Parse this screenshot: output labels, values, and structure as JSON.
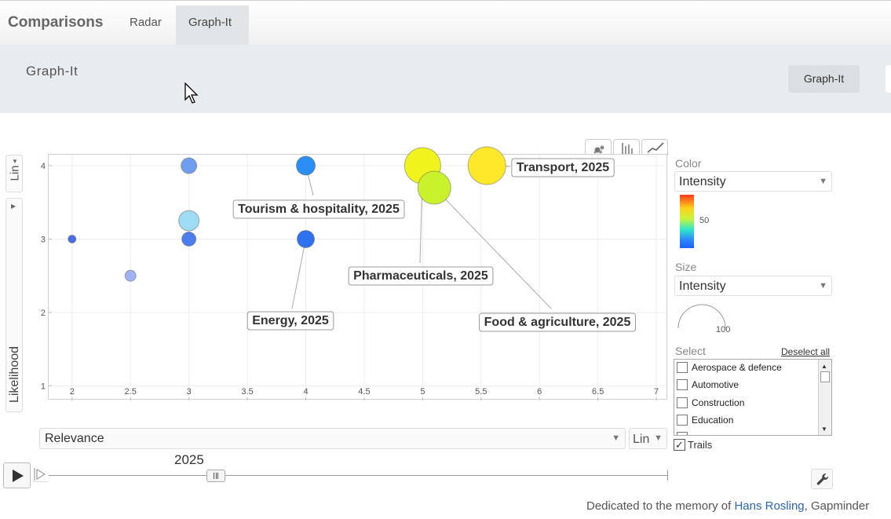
{
  "app": {
    "brand": "Comparisons",
    "tabs": [
      {
        "label": "Radar",
        "active": false
      },
      {
        "label": "Graph-It",
        "active": true
      }
    ]
  },
  "subheader": {
    "title": "Graph-It",
    "button_label": "Graph-It"
  },
  "chart_controls": {
    "modes": [
      {
        "icon": "bubble-chart-icon",
        "active": true
      },
      {
        "icon": "bar-chart-icon",
        "active": false
      },
      {
        "icon": "line-chart-icon",
        "active": false
      }
    ],
    "y_scale": "Lin",
    "y_indicator": "Likelihood",
    "x_indicator": "Relevance",
    "x_scale": "Lin"
  },
  "timeline": {
    "year": "2025",
    "progress": 0.27
  },
  "right_panel": {
    "color_label": "Color",
    "color_indicator": "Intensity",
    "color_legend_tick": "50",
    "size_label": "Size",
    "size_indicator": "Intensity",
    "size_legend_tick": "100",
    "select_label": "Select",
    "deselect_label": "Deselect all",
    "select_items": [
      {
        "label": "Aerospace & defence",
        "checked": false
      },
      {
        "label": "Automotive",
        "checked": false
      },
      {
        "label": "Construction",
        "checked": false
      },
      {
        "label": "Education",
        "checked": false
      }
    ],
    "trails_label": "Trails",
    "trails_checked": true
  },
  "footer": {
    "prefix": "Dedicated to the memory of ",
    "link": "Hans Rosling",
    "suffix": ", Gapminder"
  },
  "chart_data": {
    "type": "scatter",
    "xlabel": "Relevance",
    "ylabel": "Likelihood",
    "xlim": [
      1.8,
      7.1
    ],
    "ylim": [
      0.8,
      4.15
    ],
    "x_ticks": [
      "2",
      "2.5",
      "3",
      "3.5",
      "4",
      "4.5",
      "5",
      "5.5",
      "6",
      "6.5",
      "7"
    ],
    "y_ticks": [
      "1",
      "2",
      "3",
      "4"
    ],
    "grid": true,
    "points": [
      {
        "x": 2,
        "y": 3,
        "size": 5,
        "color": "#4a6de8"
      },
      {
        "x": 2.5,
        "y": 2.5,
        "size": 7,
        "color": "#9fb2f4"
      },
      {
        "x": 3,
        "y": 4,
        "size": 10,
        "color": "#6f9df0"
      },
      {
        "x": 3,
        "y": 3.25,
        "size": 13,
        "color": "#9ddcf3"
      },
      {
        "x": 3,
        "y": 3,
        "size": 9,
        "color": "#4b7ff0"
      },
      {
        "x": 4,
        "y": 4,
        "size": 12,
        "color": "#2b8ef3",
        "label": "Tourism & hospitality, 2025"
      },
      {
        "x": 4,
        "y": 3,
        "size": 11,
        "color": "#2f72f0",
        "label": "Energy, 2025"
      },
      {
        "x": 5,
        "y": 4,
        "size": 23,
        "color": "#f1f31c",
        "label": "Pharmaceuticals, 2025"
      },
      {
        "x": 5.1,
        "y": 3.7,
        "size": 21,
        "color": "#c9f22c",
        "label": "Food & agriculture, 2025"
      },
      {
        "x": 5.55,
        "y": 4,
        "size": 24,
        "color": "#ffe82a",
        "label": "Transport, 2025"
      }
    ]
  }
}
